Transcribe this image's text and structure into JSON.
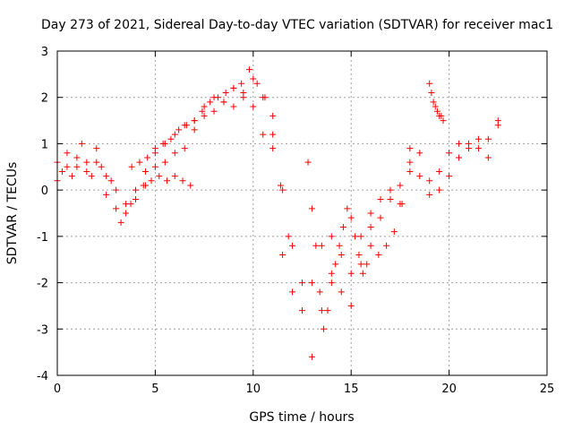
{
  "chart_data": {
    "type": "scatter",
    "title": "Day 273 of 2021, Sidereal Day-to-day VTEC variation (SDTVAR) for receiver mac1",
    "xlabel": "GPS time / hours",
    "ylabel": "SDTVAR / TECUs",
    "xlim": [
      0,
      25
    ],
    "ylim": [
      -4,
      3
    ],
    "xticks": [
      "0",
      "5",
      "10",
      "15",
      "20",
      "25"
    ],
    "yticks": [
      "-4",
      "-3",
      "-2",
      "-1",
      "0",
      "1",
      "2",
      "3"
    ],
    "grid": true,
    "marker": "+",
    "color": "#ff0000",
    "series": [
      {
        "x": [
          0,
          0.25,
          0.5,
          0.75,
          1.0,
          1.25,
          1.5,
          1.75,
          2.0,
          2.25,
          2.5,
          2.75,
          3.0,
          3.25,
          3.5,
          3.75,
          4.0,
          4.5,
          5.0,
          5.5,
          6.0,
          6.5,
          7.0,
          7.5,
          8.0,
          8.5,
          9.0,
          9.5,
          10.0,
          10.5,
          11.0,
          11.5,
          12.0,
          12.5,
          13.0,
          13.5,
          14.0,
          14.5,
          15.0,
          15.5,
          16.0,
          16.5,
          17.0,
          17.5,
          18.0,
          18.5,
          19.0,
          19.5,
          20.0,
          20.5,
          21.0,
          21.5,
          22.0,
          22.5
        ],
        "y": [
          0.2,
          0.4,
          0.8,
          0.3,
          0.5,
          1.0,
          0.6,
          0.3,
          0.9,
          0.5,
          -0.1,
          0.2,
          -0.4,
          -0.7,
          -0.5,
          -0.3,
          0.0,
          0.4,
          0.8,
          1.0,
          1.2,
          1.4,
          1.5,
          1.8,
          2.0,
          1.9,
          2.2,
          2.1,
          2.4,
          2.0,
          1.6,
          0.0,
          -1.2,
          -2.0,
          -3.6,
          -2.6,
          -1.8,
          -2.2,
          -2.5,
          -1.6,
          -0.8,
          -0.6,
          -0.2,
          0.1,
          0.6,
          0.3,
          -0.1,
          0.4,
          0.8,
          1.0,
          1.0,
          0.9,
          1.1,
          1.4
        ]
      },
      {
        "x": [
          0,
          0.5,
          1.0,
          1.5,
          2.0,
          2.5,
          3.0,
          3.5,
          4.0,
          4.5,
          5.0,
          5.5,
          6.0,
          6.5,
          7.0,
          7.5,
          8.0,
          8.5,
          9.0,
          9.5,
          10.0,
          10.5,
          11.0,
          11.5,
          12.0,
          12.5,
          13.0,
          13.5,
          14.0,
          14.5,
          15.0,
          15.5,
          16.0,
          16.5,
          17.0,
          17.5,
          18.0,
          18.5,
          19.0,
          19.5,
          20.0,
          20.5,
          21.0,
          21.5,
          22.0,
          22.5
        ],
        "y": [
          0.6,
          0.5,
          0.7,
          0.4,
          0.6,
          0.3,
          0.0,
          -0.3,
          -0.2,
          0.1,
          0.5,
          0.6,
          0.8,
          0.9,
          1.3,
          1.6,
          1.7,
          1.9,
          1.8,
          2.0,
          1.8,
          1.2,
          0.9,
          -1.4,
          -2.2,
          -2.6,
          -2.0,
          -1.2,
          -1.0,
          -1.4,
          -1.8,
          -1.0,
          -0.5,
          -0.2,
          0.0,
          -0.3,
          0.4,
          0.8,
          0.2,
          0.0,
          0.3,
          0.7,
          0.9,
          1.1,
          0.7,
          1.5
        ]
      },
      {
        "x": [
          3.8,
          4.2,
          4.6,
          5.0,
          5.4,
          5.8,
          6.2,
          6.6,
          7.0,
          7.4,
          7.8,
          8.2,
          8.6,
          9.0,
          9.4,
          9.8,
          10.2,
          10.6,
          11.0,
          11.4,
          11.8
        ],
        "y": [
          0.5,
          0.6,
          0.7,
          0.9,
          1.0,
          1.1,
          1.3,
          1.4,
          1.5,
          1.7,
          1.9,
          2.0,
          2.1,
          2.2,
          2.3,
          2.6,
          2.3,
          2.0,
          1.2,
          0.1,
          -1.0
        ]
      },
      {
        "x": [
          4.4,
          4.8,
          5.2,
          5.6,
          6.0,
          6.4,
          6.8
        ],
        "y": [
          0.1,
          0.2,
          0.3,
          0.2,
          0.3,
          0.2,
          0.1
        ]
      },
      {
        "x": [
          12.8,
          13.0,
          13.2,
          13.4,
          13.6,
          13.8,
          14.0,
          14.2,
          14.4,
          14.6,
          14.8,
          15.0,
          15.2,
          15.4,
          15.6,
          15.8,
          16.0,
          16.4,
          16.8,
          17.2,
          17.6,
          18.0
        ],
        "y": [
          0.6,
          -0.4,
          -1.2,
          -2.2,
          -3.0,
          -2.6,
          -2.0,
          -1.6,
          -1.2,
          -0.8,
          -0.4,
          -0.6,
          -1.0,
          -1.4,
          -1.8,
          -1.6,
          -1.2,
          -1.4,
          -1.2,
          -0.9,
          -0.3,
          0.9
        ]
      },
      {
        "x": [
          19.0,
          19.1,
          19.2,
          19.3,
          19.4,
          19.5,
          19.6,
          19.7
        ],
        "y": [
          2.3,
          2.1,
          1.9,
          1.8,
          1.7,
          1.6,
          1.6,
          1.5
        ]
      }
    ]
  }
}
